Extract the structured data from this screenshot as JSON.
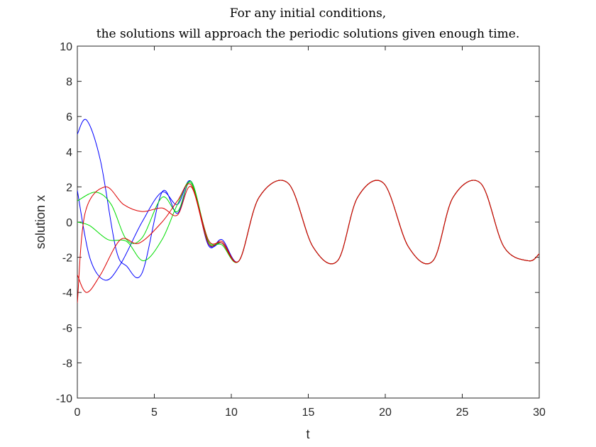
{
  "chart_data": {
    "type": "line",
    "title": [
      "For any initial conditions,",
      "the solutions will approach the periodic solutions given enough time."
    ],
    "xlabel": "t",
    "ylabel": "solution x",
    "xlim": [
      0,
      30
    ],
    "ylim": [
      -10,
      10
    ],
    "xticks": [
      0,
      5,
      10,
      15,
      20,
      25,
      30
    ],
    "yticks": [
      -10,
      -8,
      -6,
      -4,
      -2,
      0,
      2,
      4,
      6,
      8,
      10
    ],
    "grid": false,
    "legend": "none",
    "series": [
      {
        "color": "#0000ff",
        "x": [
          0,
          0.6,
          1.5,
          2.5,
          3.2,
          4.2,
          5.5,
          6.5,
          7.4,
          8.5,
          9.4,
          10.5,
          11.8,
          13.7,
          15.3,
          16.9,
          18.2,
          19.9,
          21.5,
          23.1,
          24.4,
          26.2,
          27.7,
          29.3,
          30
        ],
        "y": [
          5.0,
          5.8,
          3.5,
          -1.5,
          -2.5,
          -2.9,
          1.7,
          0.5,
          2.3,
          -1.2,
          -1.2,
          -2.2,
          1.4,
          2.2,
          -1.4,
          -2.2,
          1.4,
          2.2,
          -1.4,
          -2.2,
          1.4,
          2.2,
          -1.4,
          -2.2,
          -1.8
        ]
      },
      {
        "color": "#0000ff",
        "x": [
          0,
          0.8,
          1.8,
          2.8,
          4.2,
          5.5,
          6.5,
          7.4,
          8.5,
          9.4,
          10.5,
          11.8,
          13.7,
          15.3,
          16.9,
          18.2,
          19.9,
          21.5,
          23.1,
          24.4,
          26.2,
          27.7,
          29.3,
          30
        ],
        "y": [
          1.8,
          -2.0,
          -3.3,
          -2.4,
          0.0,
          1.7,
          1.0,
          2.3,
          -1.3,
          -1.0,
          -2.2,
          1.4,
          2.2,
          -1.4,
          -2.2,
          1.4,
          2.2,
          -1.4,
          -2.2,
          1.4,
          2.2,
          -1.4,
          -2.2,
          -1.8
        ]
      },
      {
        "color": "#00dd00",
        "x": [
          0,
          1.2,
          2.2,
          3.2,
          4.2,
          5.5,
          6.5,
          7.4,
          8.5,
          9.4,
          10.5,
          11.8,
          13.7,
          15.3,
          16.9,
          18.2,
          19.9,
          21.5,
          23.1,
          24.4,
          26.2,
          27.7,
          29.3,
          30
        ],
        "y": [
          1.2,
          1.7,
          1.0,
          -1.0,
          -0.9,
          1.4,
          0.6,
          2.3,
          -1.1,
          -1.2,
          -2.2,
          1.4,
          2.2,
          -1.4,
          -2.2,
          1.4,
          2.2,
          -1.4,
          -2.2,
          1.4,
          2.2,
          -1.4,
          -2.2,
          -1.8
        ]
      },
      {
        "color": "#00dd00",
        "x": [
          0,
          0.8,
          2.0,
          3.2,
          4.3,
          5.5,
          6.5,
          7.4,
          8.5,
          9.4,
          10.5,
          11.8,
          13.7,
          15.3,
          16.9,
          18.2,
          19.9,
          21.5,
          23.1,
          24.4,
          26.2,
          27.7,
          29.3,
          30
        ],
        "y": [
          0.0,
          -0.2,
          -1.0,
          -1.1,
          -2.2,
          -1.0,
          1.0,
          2.2,
          -1.0,
          -1.3,
          -2.2,
          1.4,
          2.2,
          -1.4,
          -2.2,
          1.4,
          2.2,
          -1.4,
          -2.2,
          1.4,
          2.2,
          -1.4,
          -2.2,
          -1.8
        ]
      },
      {
        "color": "#dd0000",
        "x": [
          0,
          0.5,
          1.8,
          3.0,
          4.2,
          5.5,
          6.5,
          7.4,
          8.5,
          9.4,
          10.5,
          11.8,
          13.7,
          15.3,
          16.9,
          18.2,
          19.9,
          21.5,
          23.1,
          24.4,
          26.2,
          27.7,
          29.3,
          30
        ],
        "y": [
          -4.6,
          0.5,
          2.0,
          1.0,
          0.6,
          0.8,
          0.4,
          2.0,
          -1.2,
          -1.1,
          -2.2,
          1.4,
          2.2,
          -1.4,
          -2.2,
          1.4,
          2.2,
          -1.4,
          -2.2,
          1.4,
          2.2,
          -1.4,
          -2.2,
          -1.8
        ]
      },
      {
        "color": "#dd0000",
        "x": [
          0,
          0.6,
          1.5,
          2.8,
          4.0,
          5.5,
          6.5,
          7.4,
          8.5,
          9.4,
          10.5,
          11.8,
          13.7,
          15.3,
          16.9,
          18.2,
          19.9,
          21.5,
          23.1,
          24.4,
          26.2,
          27.7,
          29.3,
          30
        ],
        "y": [
          -3.0,
          -4.0,
          -3.0,
          -1.0,
          -1.2,
          0.0,
          1.2,
          2.1,
          -1.0,
          -1.2,
          -2.2,
          1.4,
          2.2,
          -1.4,
          -2.2,
          1.4,
          2.2,
          -1.4,
          -2.2,
          1.4,
          2.2,
          -1.4,
          -2.2,
          -1.8
        ]
      }
    ]
  }
}
